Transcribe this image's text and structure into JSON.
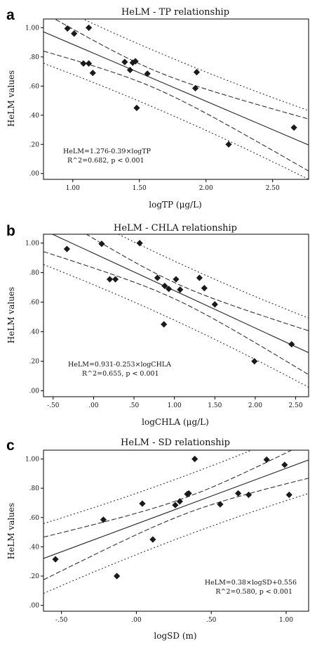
{
  "chart_data": [
    {
      "type": "scatter",
      "panel": "a",
      "title": "HeLM - TP relationship",
      "xlabel": "logTP (μg/L)",
      "ylabel": "HeLM values",
      "xlim": [
        0.78,
        2.77
      ],
      "ylim": [
        -0.04,
        1.06
      ],
      "xticks": [
        1.0,
        1.5,
        2.0,
        2.5
      ],
      "xtick_labels": [
        "1.00",
        "1.50",
        "2.00",
        "2.50"
      ],
      "yticks": [
        0.0,
        0.2,
        0.4,
        0.6,
        0.8,
        1.0
      ],
      "ytick_labels": [
        ".00",
        ".20",
        ".40",
        ".60",
        ".80",
        "1.00"
      ],
      "points": [
        {
          "x": 0.96,
          "y": 0.995
        },
        {
          "x": 1.01,
          "y": 0.96
        },
        {
          "x": 1.12,
          "y": 1.0
        },
        {
          "x": 1.08,
          "y": 0.755
        },
        {
          "x": 1.12,
          "y": 0.755
        },
        {
          "x": 1.15,
          "y": 0.69
        },
        {
          "x": 1.39,
          "y": 0.765
        },
        {
          "x": 1.43,
          "y": 0.71
        },
        {
          "x": 1.45,
          "y": 0.76
        },
        {
          "x": 1.47,
          "y": 0.77
        },
        {
          "x": 1.48,
          "y": 0.45
        },
        {
          "x": 1.56,
          "y": 0.685
        },
        {
          "x": 1.92,
          "y": 0.585
        },
        {
          "x": 1.93,
          "y": 0.695
        },
        {
          "x": 2.17,
          "y": 0.2
        },
        {
          "x": 2.66,
          "y": 0.315
        }
      ],
      "fit": {
        "intercept": 1.276,
        "slope": -0.39
      },
      "bands": {
        "center": 1.6,
        "sxx": 2.8,
        "ci_half": 0.06,
        "pi_half": 0.195
      },
      "annotations": [
        "HeLM=1.276-0.39×logTP",
        "R^2=0.682, p < 0.001"
      ],
      "annotation_anchor": "bottom-left"
    },
    {
      "type": "scatter",
      "panel": "b",
      "title": "HeLM - CHLA relationship",
      "xlabel": "logCHLA (μg/L)",
      "ylabel": "HeLM values",
      "xlim": [
        -0.62,
        2.66
      ],
      "ylim": [
        -0.04,
        1.06
      ],
      "xticks": [
        -0.5,
        0.0,
        0.5,
        1.0,
        1.5,
        2.0,
        2.5
      ],
      "xtick_labels": [
        "-.50",
        ".00",
        ".50",
        "1.00",
        "1.50",
        "2.00",
        "2.50"
      ],
      "yticks": [
        0.0,
        0.2,
        0.4,
        0.6,
        0.8,
        1.0
      ],
      "ytick_labels": [
        ".00",
        ".20",
        ".40",
        ".60",
        ".80",
        "1.00"
      ],
      "points": [
        {
          "x": -0.33,
          "y": 0.96
        },
        {
          "x": 0.1,
          "y": 0.995
        },
        {
          "x": 0.2,
          "y": 0.755
        },
        {
          "x": 0.27,
          "y": 0.755
        },
        {
          "x": 0.57,
          "y": 1.0
        },
        {
          "x": 0.79,
          "y": 0.765
        },
        {
          "x": 0.88,
          "y": 0.71
        },
        {
          "x": 0.93,
          "y": 0.69
        },
        {
          "x": 1.02,
          "y": 0.755
        },
        {
          "x": 1.07,
          "y": 0.685
        },
        {
          "x": 0.87,
          "y": 0.45
        },
        {
          "x": 1.31,
          "y": 0.765
        },
        {
          "x": 1.37,
          "y": 0.695
        },
        {
          "x": 1.5,
          "y": 0.585
        },
        {
          "x": 1.99,
          "y": 0.2
        },
        {
          "x": 2.45,
          "y": 0.315
        }
      ],
      "fit": {
        "intercept": 0.931,
        "slope": -0.253
      },
      "bands": {
        "center": 1.0,
        "sxx": 7.0,
        "ci_half": 0.055,
        "pi_half": 0.2
      },
      "annotations": [
        "HeLM=0.931-0.253×logCHLA",
        "R^2=0.655, p < 0.001"
      ],
      "annotation_anchor": "bottom-left"
    },
    {
      "type": "scatter",
      "panel": "c",
      "title": "HeLM - SD relationship",
      "xlabel": "logSD (m)",
      "ylabel": "HeLM values",
      "xlim": [
        -0.62,
        1.15
      ],
      "ylim": [
        -0.04,
        1.06
      ],
      "xticks": [
        -0.5,
        0.0,
        0.5,
        1.0
      ],
      "xtick_labels": [
        "-.50",
        ".00",
        ".50",
        "1.00"
      ],
      "yticks": [
        0.0,
        0.2,
        0.4,
        0.6,
        0.8,
        1.0
      ],
      "ytick_labels": [
        ".00",
        ".20",
        ".40",
        ".60",
        ".80",
        "1.00"
      ],
      "points": [
        {
          "x": -0.54,
          "y": 0.315
        },
        {
          "x": -0.22,
          "y": 0.585
        },
        {
          "x": -0.13,
          "y": 0.2
        },
        {
          "x": 0.04,
          "y": 0.695
        },
        {
          "x": 0.11,
          "y": 0.45
        },
        {
          "x": 0.26,
          "y": 0.685
        },
        {
          "x": 0.29,
          "y": 0.71
        },
        {
          "x": 0.34,
          "y": 0.76
        },
        {
          "x": 0.35,
          "y": 0.765
        },
        {
          "x": 0.39,
          "y": 1.0
        },
        {
          "x": 0.56,
          "y": 0.69
        },
        {
          "x": 0.68,
          "y": 0.765
        },
        {
          "x": 0.75,
          "y": 0.755
        },
        {
          "x": 0.87,
          "y": 0.995
        },
        {
          "x": 0.99,
          "y": 0.96
        },
        {
          "x": 1.02,
          "y": 0.755
        }
      ],
      "fit": {
        "intercept": 0.556,
        "slope": 0.38
      },
      "bands": {
        "center": 0.35,
        "sxx": 2.5,
        "ci_half": 0.055,
        "pi_half": 0.205
      },
      "annotations": [
        "HeLM=0.38×logSD+0.556",
        "R^2=0.580, p < 0.001"
      ],
      "annotation_anchor": "bottom-right"
    }
  ]
}
